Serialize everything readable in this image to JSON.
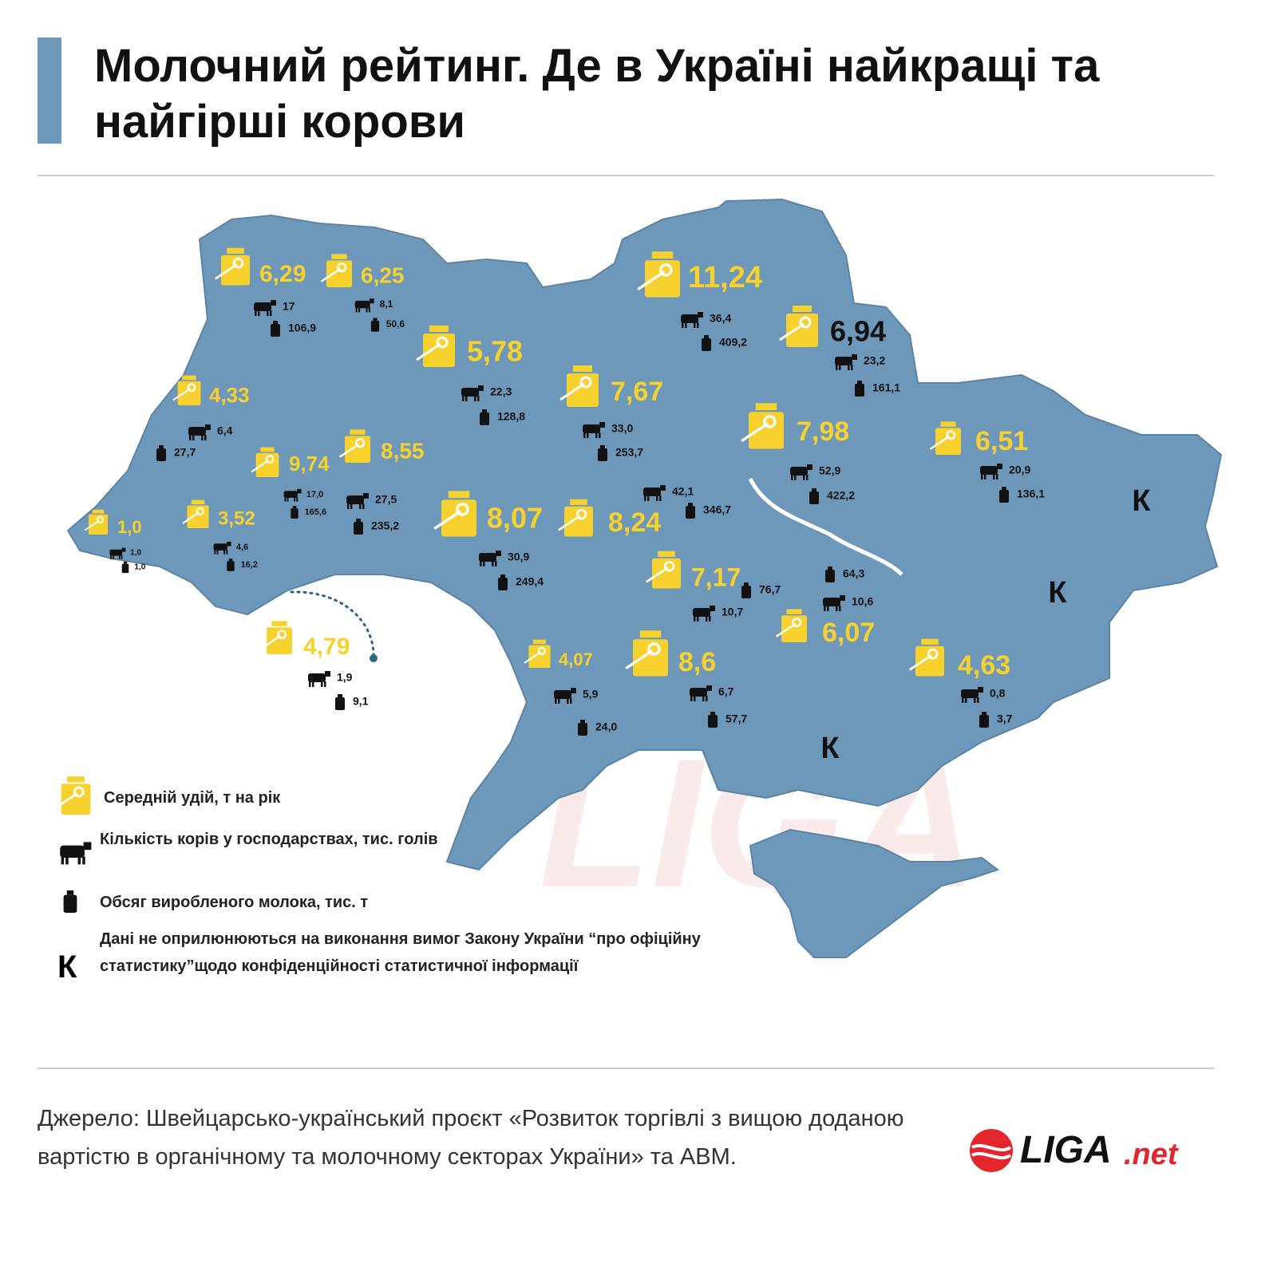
{
  "header": {
    "title": "Молочний рейтинг. Де в Україні найкращі та найгірші корови"
  },
  "map": {
    "regions": [
      {
        "yield": "6,29",
        "cows": "17",
        "milk": "106,9"
      },
      {
        "yield": "6,25",
        "cows": "8,1",
        "milk": "50,6"
      },
      {
        "yield": "5,78",
        "cows": "22,3",
        "milk": "128,8"
      },
      {
        "yield": "7,67",
        "cows": "33,0",
        "milk": "253,7"
      },
      {
        "yield": "11,24",
        "cows": "36,4",
        "milk": "409,2"
      },
      {
        "yield": "6,94",
        "cows": "23,2",
        "milk": "161,1"
      },
      {
        "yield": "7,98",
        "cows": "52,9",
        "milk": "422,2"
      },
      {
        "yield": "6,51",
        "cows": "20,9",
        "milk": "136,1"
      },
      {
        "yield": "4,33",
        "cows": "6,4",
        "milk": "27,7"
      },
      {
        "yield": "9,74",
        "cows": "17,0",
        "milk": "165,6"
      },
      {
        "yield": "8,55",
        "cows": "27,5",
        "milk": "235,2"
      },
      {
        "yield": "1,0",
        "cows": "1,0",
        "milk": "1,0"
      },
      {
        "yield": "3,52",
        "cows": "4,6",
        "milk": "16,2"
      },
      {
        "yield": "4,79",
        "cows": "1,9",
        "milk": "9,1"
      },
      {
        "yield": "8,07",
        "cows": "30,9",
        "milk": "249,4"
      },
      {
        "yield": "8,24",
        "cows": "42,1",
        "milk": "346,7"
      },
      {
        "yield": "7,17",
        "cows": "10,7",
        "milk": "76,7"
      },
      {
        "yield": "6,07",
        "cows": "10,6",
        "milk": "64,3"
      },
      {
        "yield": "4,07",
        "cows": "5,9",
        "milk": "24,0"
      },
      {
        "yield": "8,6",
        "cows": "6,7",
        "milk": "57,7"
      },
      {
        "yield": "4,63",
        "cows": "0,8",
        "milk": "3,7"
      }
    ],
    "confidential": [
      "К",
      "К",
      "К"
    ]
  },
  "legend": {
    "items": [
      {
        "label": "Середній удій, т на рік"
      },
      {
        "label": "Кількість корів у господарствах, тис. голів"
      },
      {
        "label": "Обсяг виробленого молока, тис. т"
      },
      {
        "symbol": "К",
        "label": "Дані не оприлюнюються на виконання вимог Закону України “про офіційну статистику”щодо конфіденційності статистичної інформації"
      }
    ]
  },
  "footer": {
    "source": "Джерело: Швейцарсько-український проєкт «Розвиток торгівлі з вищою доданою вартістю в органічному та молочному секторах України» та АВМ.",
    "logo": {
      "name": "LIGA",
      "suffix": ".net"
    }
  }
}
